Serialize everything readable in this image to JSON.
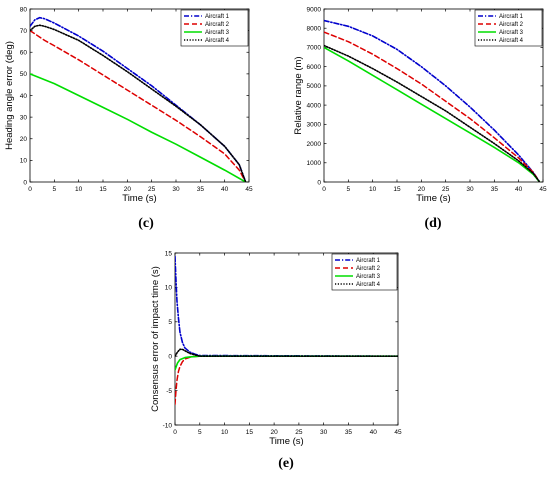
{
  "colors": {
    "aircraft1": "#0000cc",
    "aircraft2": "#dd0000",
    "aircraft3": "#00dd00",
    "aircraft4": "#000000"
  },
  "chart_data": [
    {
      "type": "line",
      "panel_label": "(c)",
      "xlabel": "Time (s)",
      "ylabel": "Heading angle error (deg)",
      "xlim": [
        0,
        45
      ],
      "ylim": [
        0,
        80
      ],
      "xticks": [
        0,
        5,
        10,
        15,
        20,
        25,
        30,
        35,
        40,
        45
      ],
      "yticks": [
        0,
        10,
        20,
        30,
        40,
        50,
        60,
        70,
        80
      ],
      "grid": false,
      "legend_position": "top-right",
      "series": [
        {
          "name": "Aircraft 1",
          "style": "dashdot",
          "x": [
            0,
            1,
            2,
            3,
            5,
            10,
            15,
            20,
            25,
            30,
            35,
            40,
            43,
            44.3
          ],
          "y": [
            72,
            75,
            76,
            75.5,
            73.5,
            67.5,
            60.5,
            52.5,
            44.5,
            35.5,
            26.5,
            16.5,
            8,
            0
          ]
        },
        {
          "name": "Aircraft 2",
          "style": "dashed",
          "x": [
            0,
            1,
            2,
            3,
            5,
            10,
            15,
            20,
            25,
            30,
            35,
            40,
            43,
            44.3
          ],
          "y": [
            70,
            68.5,
            67,
            65.5,
            63,
            56.5,
            49.5,
            42.5,
            35.5,
            28.5,
            21,
            13,
            5.5,
            0
          ]
        },
        {
          "name": "Aircraft 3",
          "style": "solid",
          "x": [
            0,
            5,
            10,
            15,
            20,
            25,
            30,
            35,
            40,
            44.3
          ],
          "y": [
            50,
            45.5,
            40,
            34.5,
            29,
            23,
            17.5,
            11.5,
            5.5,
            0
          ]
        },
        {
          "name": "Aircraft 4",
          "style": "dotted",
          "x": [
            0,
            1,
            2,
            3,
            5,
            10,
            15,
            20,
            25,
            30,
            35,
            40,
            43,
            44.3
          ],
          "y": [
            70,
            72,
            72.5,
            72,
            70.5,
            65.5,
            58.5,
            51,
            43,
            35,
            26.5,
            16.5,
            8,
            0
          ]
        }
      ]
    },
    {
      "type": "line",
      "panel_label": "(d)",
      "xlabel": "Time (s)",
      "ylabel": "Relative range (m)",
      "xlim": [
        0,
        45
      ],
      "ylim": [
        0,
        9000
      ],
      "xticks": [
        0,
        5,
        10,
        15,
        20,
        25,
        30,
        35,
        40,
        45
      ],
      "yticks": [
        0,
        1000,
        2000,
        3000,
        4000,
        5000,
        6000,
        7000,
        8000,
        9000
      ],
      "grid": false,
      "legend_position": "top-right",
      "series": [
        {
          "name": "Aircraft 1",
          "style": "dashdot",
          "x": [
            0,
            5,
            10,
            15,
            20,
            25,
            30,
            35,
            40,
            43,
            44.3
          ],
          "y": [
            8400,
            8100,
            7600,
            6900,
            6000,
            5000,
            3900,
            2700,
            1400,
            500,
            0
          ]
        },
        {
          "name": "Aircraft 2",
          "style": "dashed",
          "x": [
            0,
            5,
            10,
            15,
            20,
            25,
            30,
            35,
            40,
            43,
            44.3
          ],
          "y": [
            7800,
            7300,
            6650,
            5900,
            5100,
            4200,
            3300,
            2300,
            1250,
            500,
            0
          ]
        },
        {
          "name": "Aircraft 3",
          "style": "solid",
          "x": [
            0,
            5,
            10,
            15,
            20,
            25,
            30,
            35,
            40,
            43,
            44.3
          ],
          "y": [
            7000,
            6300,
            5550,
            4800,
            4050,
            3300,
            2550,
            1800,
            1000,
            400,
            0
          ]
        },
        {
          "name": "Aircraft 4",
          "style": "dotted",
          "x": [
            0,
            5,
            10,
            15,
            20,
            25,
            30,
            35,
            40,
            43,
            44.3
          ],
          "y": [
            7100,
            6550,
            5900,
            5200,
            4450,
            3700,
            2850,
            2000,
            1100,
            450,
            0
          ]
        }
      ]
    },
    {
      "type": "line",
      "panel_label": "(e)",
      "xlabel": "Time (s)",
      "ylabel": "Consensus error of impact time (s)",
      "xlim": [
        0,
        45
      ],
      "ylim": [
        -10,
        15
      ],
      "xticks": [
        0,
        5,
        10,
        15,
        20,
        25,
        30,
        35,
        40,
        45
      ],
      "yticks": [
        -10,
        -5,
        0,
        5,
        10,
        15
      ],
      "grid": false,
      "legend_position": "top-right",
      "series": [
        {
          "name": "Aircraft 1",
          "style": "dashdot",
          "x": [
            0,
            0.2,
            0.4,
            0.7,
            1,
            1.5,
            2,
            3,
            4,
            5,
            45
          ],
          "y": [
            14.5,
            11,
            8,
            5.5,
            3.5,
            2,
            1.2,
            0.6,
            0.3,
            0.1,
            0
          ]
        },
        {
          "name": "Aircraft 2",
          "style": "dashed",
          "x": [
            0,
            0.2,
            0.4,
            0.7,
            1,
            1.5,
            2,
            3,
            4,
            5,
            45
          ],
          "y": [
            -7,
            -5,
            -3.5,
            -2.2,
            -1.5,
            -0.8,
            -0.4,
            -0.15,
            -0.05,
            0,
            0
          ]
        },
        {
          "name": "Aircraft 3",
          "style": "solid",
          "x": [
            0,
            0.5,
            1,
            2,
            3,
            5,
            45
          ],
          "y": [
            -2,
            -1,
            -0.5,
            -0.2,
            -0.1,
            0,
            0
          ]
        },
        {
          "name": "Aircraft 4",
          "style": "dotted",
          "x": [
            0,
            0.5,
            1,
            1.5,
            2,
            3,
            4,
            5,
            45
          ],
          "y": [
            0,
            0.6,
            1,
            1,
            0.8,
            0.4,
            0.2,
            0,
            0
          ]
        }
      ]
    }
  ]
}
